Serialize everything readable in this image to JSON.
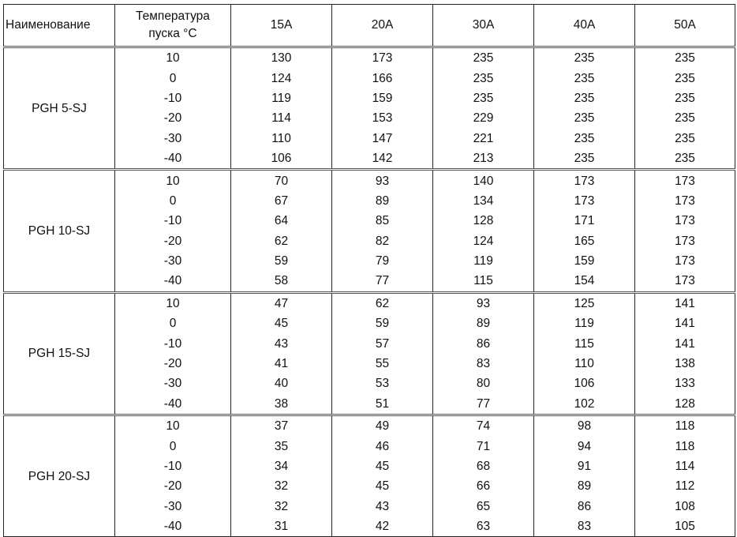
{
  "table": {
    "headers": [
      "Наименование",
      "Температура пуска °C",
      "15A",
      "20A",
      "30A",
      "40A",
      "50A"
    ],
    "temperatures": [
      "10",
      "0",
      "-10",
      "-20",
      "-30",
      "-40"
    ],
    "groups": [
      {
        "model": "PGH 5-SJ",
        "rows": [
          [
            "130",
            "173",
            "235",
            "235",
            "235"
          ],
          [
            "124",
            "166",
            "235",
            "235",
            "235"
          ],
          [
            "119",
            "159",
            "235",
            "235",
            "235"
          ],
          [
            "114",
            "153",
            "229",
            "235",
            "235"
          ],
          [
            "110",
            "147",
            "221",
            "235",
            "235"
          ],
          [
            "106",
            "142",
            "213",
            "235",
            "235"
          ]
        ]
      },
      {
        "model": "PGH 10-SJ",
        "rows": [
          [
            "70",
            "93",
            "140",
            "173",
            "173"
          ],
          [
            "67",
            "89",
            "134",
            "173",
            "173"
          ],
          [
            "64",
            "85",
            "128",
            "171",
            "173"
          ],
          [
            "62",
            "82",
            "124",
            "165",
            "173"
          ],
          [
            "59",
            "79",
            "119",
            "159",
            "173"
          ],
          [
            "58",
            "77",
            "115",
            "154",
            "173"
          ]
        ]
      },
      {
        "model": "PGH 15-SJ",
        "rows": [
          [
            "47",
            "62",
            "93",
            "125",
            "141"
          ],
          [
            "45",
            "59",
            "89",
            "119",
            "141"
          ],
          [
            "43",
            "57",
            "86",
            "115",
            "141"
          ],
          [
            "41",
            "55",
            "83",
            "110",
            "138"
          ],
          [
            "40",
            "53",
            "80",
            "106",
            "133"
          ],
          [
            "38",
            "51",
            "77",
            "102",
            "128"
          ]
        ]
      },
      {
        "model": "PGH 20-SJ",
        "rows": [
          [
            "37",
            "49",
            "74",
            "98",
            "118"
          ],
          [
            "35",
            "46",
            "71",
            "94",
            "118"
          ],
          [
            "34",
            "45",
            "68",
            "91",
            "114"
          ],
          [
            "32",
            "45",
            "66",
            "89",
            "112"
          ],
          [
            "32",
            "43",
            "65",
            "86",
            "108"
          ],
          [
            "31",
            "42",
            "63",
            "83",
            "105"
          ]
        ]
      }
    ]
  }
}
